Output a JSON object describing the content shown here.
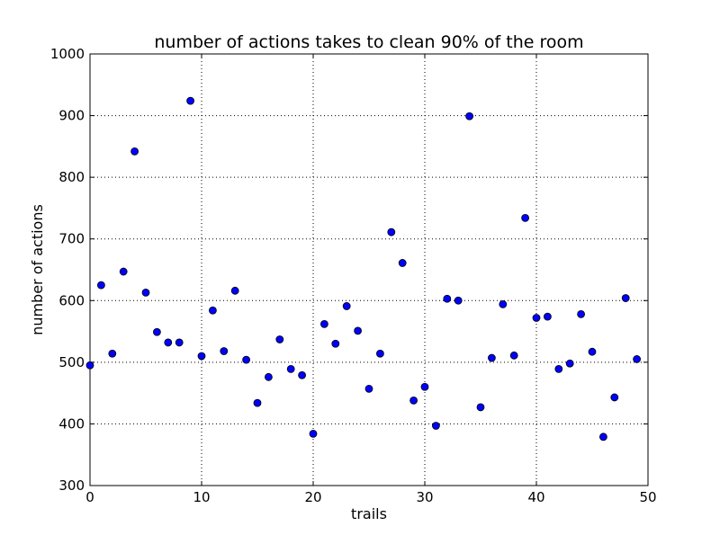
{
  "chart_data": {
    "type": "scatter",
    "title": "number of actions takes to clean 90% of the room",
    "xlabel": "trails",
    "ylabel": "number of actions",
    "xlim": [
      0,
      50
    ],
    "ylim": [
      300,
      1000
    ],
    "xticks": [
      "0",
      "10",
      "20",
      "30",
      "40",
      "50"
    ],
    "yticks": [
      "300",
      "400",
      "500",
      "600",
      "700",
      "800",
      "900",
      "1000"
    ],
    "grid": true,
    "marker_color": "#0000ff",
    "series": [
      {
        "x": [
          0,
          1,
          2,
          3,
          4,
          5,
          6,
          7,
          8,
          9,
          10,
          11,
          12,
          13,
          14,
          15,
          16,
          17,
          18,
          19,
          20,
          21,
          22,
          23,
          24,
          25,
          26,
          27,
          28,
          29,
          30,
          31,
          32,
          33,
          34,
          35,
          36,
          37,
          38,
          39,
          40,
          41,
          42,
          43,
          44,
          45,
          46,
          47,
          48,
          49
        ],
        "values": [
          495,
          625,
          514,
          647,
          842,
          613,
          549,
          532,
          532,
          924,
          510,
          584,
          518,
          616,
          504,
          434,
          476,
          537,
          489,
          479,
          384,
          562,
          530,
          591,
          551,
          457,
          514,
          711,
          661,
          438,
          460,
          397,
          603,
          600,
          899,
          427,
          507,
          594,
          511,
          734,
          572,
          574,
          489,
          498,
          578,
          517,
          379,
          443,
          604,
          505
        ]
      }
    ]
  }
}
